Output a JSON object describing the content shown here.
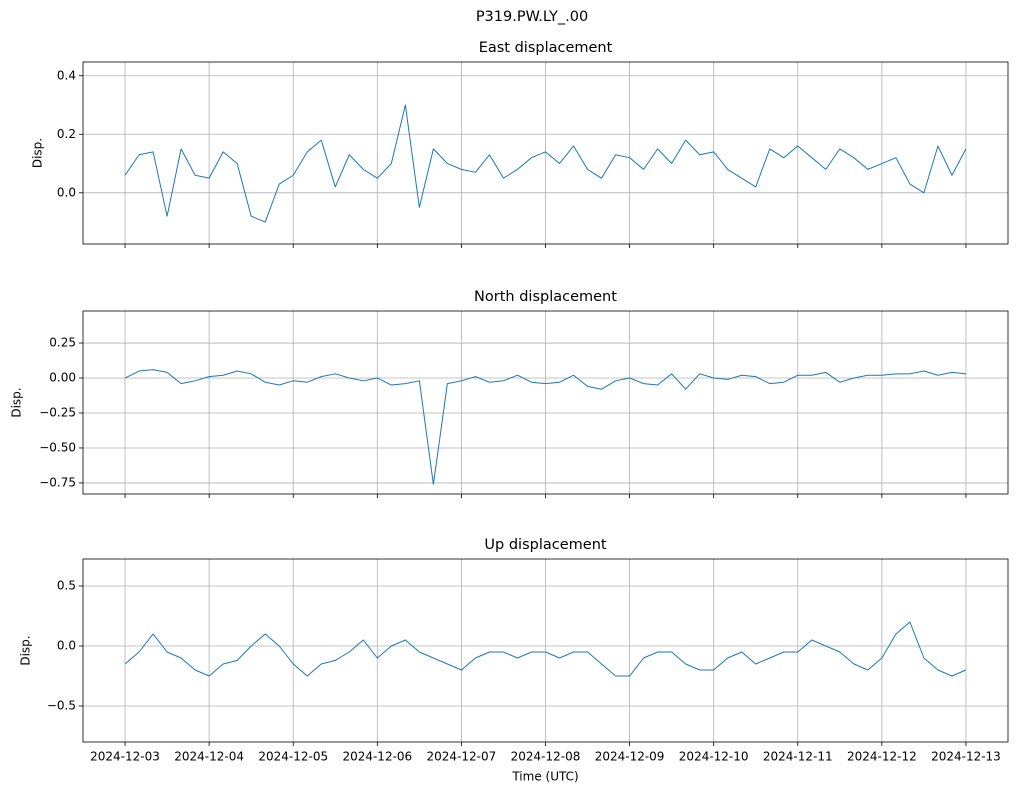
{
  "title": "P319.PW.LY_.00",
  "chart_data": [
    {
      "type": "line",
      "title": "East displacement",
      "ylabel": "Disp.",
      "color": "#1f77b4",
      "grid": true,
      "show_xticklabels": false,
      "x": [
        "2024-12-03T00:00",
        "2024-12-03T04:00",
        "2024-12-03T08:00",
        "2024-12-03T12:00",
        "2024-12-03T16:00",
        "2024-12-03T20:00",
        "2024-12-04T00:00",
        "2024-12-04T04:00",
        "2024-12-04T08:00",
        "2024-12-04T12:00",
        "2024-12-04T16:00",
        "2024-12-04T20:00",
        "2024-12-05T00:00",
        "2024-12-05T04:00",
        "2024-12-05T08:00",
        "2024-12-05T12:00",
        "2024-12-05T16:00",
        "2024-12-05T20:00",
        "2024-12-06T00:00",
        "2024-12-06T04:00",
        "2024-12-06T08:00",
        "2024-12-06T12:00",
        "2024-12-06T16:00",
        "2024-12-06T20:00",
        "2024-12-07T00:00",
        "2024-12-07T04:00",
        "2024-12-07T08:00",
        "2024-12-07T12:00",
        "2024-12-07T16:00",
        "2024-12-07T20:00",
        "2024-12-08T00:00",
        "2024-12-08T04:00",
        "2024-12-08T08:00",
        "2024-12-08T12:00",
        "2024-12-08T16:00",
        "2024-12-08T20:00",
        "2024-12-09T00:00",
        "2024-12-09T04:00",
        "2024-12-09T08:00",
        "2024-12-09T12:00",
        "2024-12-09T16:00",
        "2024-12-09T20:00",
        "2024-12-10T00:00",
        "2024-12-10T04:00",
        "2024-12-10T08:00",
        "2024-12-10T12:00",
        "2024-12-10T16:00",
        "2024-12-10T20:00",
        "2024-12-11T00:00",
        "2024-12-11T04:00",
        "2024-12-11T08:00",
        "2024-12-11T12:00",
        "2024-12-11T16:00",
        "2024-12-11T20:00",
        "2024-12-12T00:00",
        "2024-12-12T04:00",
        "2024-12-12T08:00",
        "2024-12-12T12:00",
        "2024-12-12T16:00",
        "2024-12-12T20:00",
        "2024-12-13T00:00"
      ],
      "values": [
        0.06,
        0.13,
        0.14,
        -0.08,
        0.15,
        0.06,
        0.05,
        0.14,
        0.1,
        -0.08,
        -0.1,
        0.03,
        0.06,
        0.14,
        0.18,
        0.02,
        0.13,
        0.08,
        0.05,
        0.1,
        0.3,
        -0.05,
        0.15,
        0.1,
        0.08,
        0.07,
        0.13,
        0.05,
        0.08,
        0.12,
        0.14,
        0.1,
        0.16,
        0.08,
        0.05,
        0.13,
        0.12,
        0.08,
        0.15,
        0.1,
        0.18,
        0.13,
        0.14,
        0.08,
        0.05,
        0.02,
        0.15,
        0.12,
        0.16,
        0.12,
        0.08,
        0.15,
        0.12,
        0.08,
        0.1,
        0.12,
        0.03,
        0.0,
        0.16,
        0.06,
        0.15
      ],
      "xlim": [
        "2024-12-02T12:00",
        "2024-12-13T12:00"
      ],
      "xticks": [
        "2024-12-03",
        "2024-12-04",
        "2024-12-05",
        "2024-12-06",
        "2024-12-07",
        "2024-12-08",
        "2024-12-09",
        "2024-12-10",
        "2024-12-11",
        "2024-12-12",
        "2024-12-13"
      ],
      "ylim": [
        -0.175,
        0.447
      ],
      "yticks": [
        {
          "value": 0,
          "label": "0.0"
        },
        0.2,
        0.4
      ]
    },
    {
      "type": "line",
      "title": "North displacement",
      "ylabel": "Disp.",
      "color": "#1f77b4",
      "grid": true,
      "show_xticklabels": false,
      "x": [
        "2024-12-03T00:00",
        "2024-12-03T04:00",
        "2024-12-03T08:00",
        "2024-12-03T12:00",
        "2024-12-03T16:00",
        "2024-12-03T20:00",
        "2024-12-04T00:00",
        "2024-12-04T04:00",
        "2024-12-04T08:00",
        "2024-12-04T12:00",
        "2024-12-04T16:00",
        "2024-12-04T20:00",
        "2024-12-05T00:00",
        "2024-12-05T04:00",
        "2024-12-05T08:00",
        "2024-12-05T12:00",
        "2024-12-05T16:00",
        "2024-12-05T20:00",
        "2024-12-06T00:00",
        "2024-12-06T04:00",
        "2024-12-06T08:00",
        "2024-12-06T12:00",
        "2024-12-06T16:00",
        "2024-12-06T20:00",
        "2024-12-07T00:00",
        "2024-12-07T04:00",
        "2024-12-07T08:00",
        "2024-12-07T12:00",
        "2024-12-07T16:00",
        "2024-12-07T20:00",
        "2024-12-08T00:00",
        "2024-12-08T04:00",
        "2024-12-08T08:00",
        "2024-12-08T12:00",
        "2024-12-08T16:00",
        "2024-12-08T20:00",
        "2024-12-09T00:00",
        "2024-12-09T04:00",
        "2024-12-09T08:00",
        "2024-12-09T12:00",
        "2024-12-09T16:00",
        "2024-12-09T20:00",
        "2024-12-10T00:00",
        "2024-12-10T04:00",
        "2024-12-10T08:00",
        "2024-12-10T12:00",
        "2024-12-10T16:00",
        "2024-12-10T20:00",
        "2024-12-11T00:00",
        "2024-12-11T04:00",
        "2024-12-11T08:00",
        "2024-12-11T12:00",
        "2024-12-11T16:00",
        "2024-12-11T20:00",
        "2024-12-12T00:00",
        "2024-12-12T04:00",
        "2024-12-12T08:00",
        "2024-12-12T12:00",
        "2024-12-12T16:00",
        "2024-12-12T20:00",
        "2024-12-13T00:00"
      ],
      "values": [
        0.0,
        0.05,
        0.06,
        0.04,
        -0.04,
        -0.02,
        0.01,
        0.02,
        0.05,
        0.03,
        -0.03,
        -0.05,
        -0.02,
        -0.03,
        0.01,
        0.03,
        0.0,
        -0.02,
        0.0,
        -0.05,
        -0.04,
        -0.02,
        -0.76,
        -0.04,
        -0.02,
        0.01,
        -0.03,
        -0.02,
        0.02,
        -0.03,
        -0.04,
        -0.03,
        0.02,
        -0.06,
        -0.08,
        -0.02,
        0.0,
        -0.04,
        -0.05,
        0.03,
        -0.08,
        0.03,
        0.0,
        -0.01,
        0.02,
        0.01,
        -0.04,
        -0.03,
        0.02,
        0.02,
        0.04,
        -0.03,
        0.0,
        0.02,
        0.02,
        0.03,
        0.03,
        0.05,
        0.02,
        0.04,
        0.03
      ],
      "xlim": [
        "2024-12-02T12:00",
        "2024-12-13T12:00"
      ],
      "xticks": [
        "2024-12-03",
        "2024-12-04",
        "2024-12-05",
        "2024-12-06",
        "2024-12-07",
        "2024-12-08",
        "2024-12-09",
        "2024-12-10",
        "2024-12-11",
        "2024-12-12",
        "2024-12-13"
      ],
      "ylim": [
        -0.829,
        0.479
      ],
      "yticks": [
        {
          "value": -0.75,
          "label": "−0.75"
        },
        {
          "value": -0.5,
          "label": "−0.50"
        },
        {
          "value": -0.25,
          "label": "−0.25"
        },
        {
          "value": 0,
          "label": "0.00"
        },
        0.25
      ]
    },
    {
      "type": "line",
      "title": "Up displacement",
      "ylabel": "Disp.",
      "xlabel": "Time (UTC)",
      "color": "#1f77b4",
      "grid": true,
      "show_xticklabels": true,
      "x": [
        "2024-12-03T00:00",
        "2024-12-03T04:00",
        "2024-12-03T08:00",
        "2024-12-03T12:00",
        "2024-12-03T16:00",
        "2024-12-03T20:00",
        "2024-12-04T00:00",
        "2024-12-04T04:00",
        "2024-12-04T08:00",
        "2024-12-04T12:00",
        "2024-12-04T16:00",
        "2024-12-04T20:00",
        "2024-12-05T00:00",
        "2024-12-05T04:00",
        "2024-12-05T08:00",
        "2024-12-05T12:00",
        "2024-12-05T16:00",
        "2024-12-05T20:00",
        "2024-12-06T00:00",
        "2024-12-06T04:00",
        "2024-12-06T08:00",
        "2024-12-06T12:00",
        "2024-12-06T16:00",
        "2024-12-06T20:00",
        "2024-12-07T00:00",
        "2024-12-07T04:00",
        "2024-12-07T08:00",
        "2024-12-07T12:00",
        "2024-12-07T16:00",
        "2024-12-07T20:00",
        "2024-12-08T00:00",
        "2024-12-08T04:00",
        "2024-12-08T08:00",
        "2024-12-08T12:00",
        "2024-12-08T16:00",
        "2024-12-08T20:00",
        "2024-12-09T00:00",
        "2024-12-09T04:00",
        "2024-12-09T08:00",
        "2024-12-09T12:00",
        "2024-12-09T16:00",
        "2024-12-09T20:00",
        "2024-12-10T00:00",
        "2024-12-10T04:00",
        "2024-12-10T08:00",
        "2024-12-10T12:00",
        "2024-12-10T16:00",
        "2024-12-10T20:00",
        "2024-12-11T00:00",
        "2024-12-11T04:00",
        "2024-12-11T08:00",
        "2024-12-11T12:00",
        "2024-12-11T16:00",
        "2024-12-11T20:00",
        "2024-12-12T00:00",
        "2024-12-12T04:00",
        "2024-12-12T08:00",
        "2024-12-12T12:00",
        "2024-12-12T16:00",
        "2024-12-12T20:00",
        "2024-12-13T00:00"
      ],
      "values": [
        -0.15,
        -0.05,
        0.1,
        -0.05,
        -0.1,
        -0.2,
        -0.25,
        -0.15,
        -0.12,
        0.0,
        0.1,
        0.0,
        -0.15,
        -0.25,
        -0.15,
        -0.12,
        -0.05,
        0.05,
        -0.1,
        0.0,
        0.05,
        -0.05,
        -0.1,
        -0.15,
        -0.2,
        -0.1,
        -0.05,
        -0.05,
        -0.1,
        -0.05,
        -0.05,
        -0.1,
        -0.05,
        -0.05,
        -0.15,
        -0.25,
        -0.25,
        -0.1,
        -0.05,
        -0.05,
        -0.15,
        -0.2,
        -0.2,
        -0.1,
        -0.05,
        -0.15,
        -0.1,
        -0.05,
        -0.05,
        0.05,
        0.0,
        -0.05,
        -0.15,
        -0.2,
        -0.1,
        0.1,
        0.2,
        -0.1,
        -0.2,
        -0.25,
        -0.2
      ],
      "xlim": [
        "2024-12-02T12:00",
        "2024-12-13T12:00"
      ],
      "xticks": [
        "2024-12-03",
        "2024-12-04",
        "2024-12-05",
        "2024-12-06",
        "2024-12-07",
        "2024-12-08",
        "2024-12-09",
        "2024-12-10",
        "2024-12-11",
        "2024-12-12",
        "2024-12-13"
      ],
      "ylim": [
        -0.8,
        0.725
      ],
      "yticks": [
        {
          "value": -0.5,
          "label": "−0.5"
        },
        {
          "value": 0,
          "label": "0.0"
        },
        0.5
      ]
    }
  ]
}
